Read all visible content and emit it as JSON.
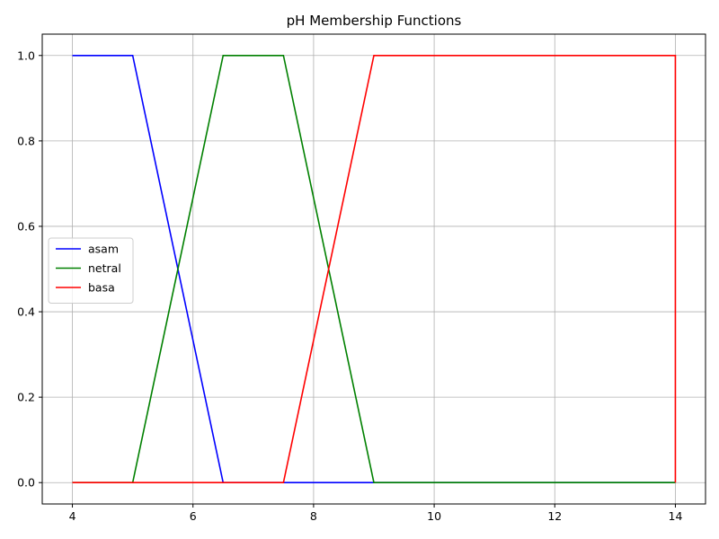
{
  "chart_data": {
    "type": "line",
    "title": "pH Membership Functions",
    "xlabel": "",
    "ylabel": "",
    "xlim": [
      3.5,
      14.5
    ],
    "ylim": [
      -0.05,
      1.05
    ],
    "xticks": [
      4,
      6,
      8,
      10,
      12,
      14
    ],
    "yticks": [
      0.0,
      0.2,
      0.4,
      0.6,
      0.8,
      1.0
    ],
    "xtick_labels": [
      "4",
      "6",
      "8",
      "10",
      "12",
      "14"
    ],
    "ytick_labels": [
      "0.0",
      "0.2",
      "0.4",
      "0.6",
      "0.8",
      "1.0"
    ],
    "grid": true,
    "legend_position": "center-left",
    "series": [
      {
        "name": "asam",
        "color": "#0000ff",
        "x": [
          4,
          5,
          6.5,
          14
        ],
        "y": [
          1,
          1,
          0,
          0
        ]
      },
      {
        "name": "netral",
        "color": "#008000",
        "x": [
          4,
          5,
          6.5,
          7.5,
          9,
          14
        ],
        "y": [
          0,
          0,
          1,
          1,
          0,
          0
        ]
      },
      {
        "name": "basa",
        "color": "#ff0000",
        "x": [
          4,
          7.5,
          9,
          14,
          14
        ],
        "y": [
          0,
          0,
          1,
          1,
          0
        ]
      }
    ]
  }
}
